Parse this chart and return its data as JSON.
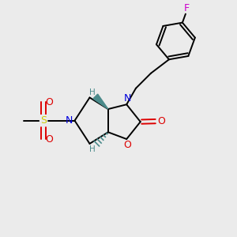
{
  "background_color": "#ebebeb",
  "figsize": [
    3.0,
    3.0
  ],
  "dpi": 100,
  "bond_lw": 1.4,
  "font_size": 9,
  "font_size_small": 7.5,
  "atom_colors": {
    "N": "#0000dd",
    "O": "#dd0000",
    "S": "#cccc00",
    "F": "#cc00cc",
    "H": "#4a8a8a",
    "C": "#000000"
  },
  "bg": "#ebebeb"
}
